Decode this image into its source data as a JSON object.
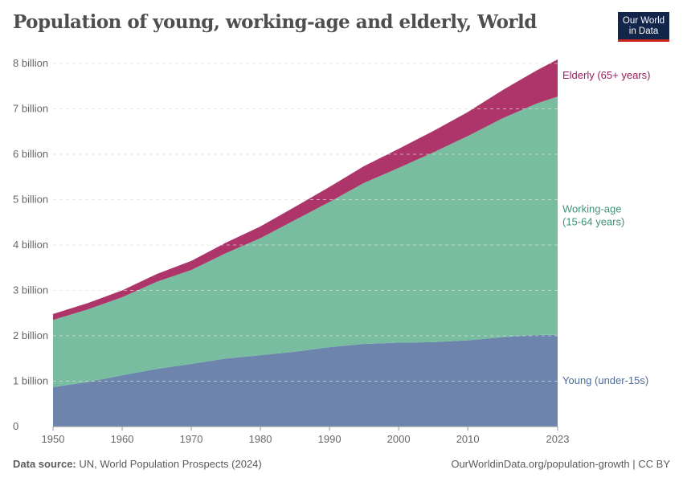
{
  "title": "Population of young, working-age and elderly, World",
  "logo": {
    "line1": "Our World",
    "line2": "in Data"
  },
  "footer": {
    "source_label": "Data source:",
    "source": "UN, World Population Prospects (2024)",
    "link": "OurWorldinData.org/population-growth | CC BY"
  },
  "chart_data": {
    "type": "area",
    "stacked": true,
    "x": [
      1950,
      1955,
      1960,
      1965,
      1970,
      1975,
      1980,
      1985,
      1990,
      1995,
      2000,
      2005,
      2010,
      2015,
      2020,
      2023
    ],
    "series": [
      {
        "name": "Young (under-15s)",
        "color": "#6d85ad",
        "label_color": "#4c6a9c",
        "values": [
          0.87,
          0.98,
          1.13,
          1.27,
          1.38,
          1.5,
          1.57,
          1.65,
          1.75,
          1.82,
          1.85,
          1.86,
          1.9,
          1.97,
          2.02,
          2.02
        ]
      },
      {
        "name": "Working-age (15-64 years)",
        "label_lines": [
          "Working-age",
          "(15-64 years)"
        ],
        "color": "#79bda1",
        "label_color": "#3e9473",
        "values": [
          1.48,
          1.6,
          1.72,
          1.92,
          2.07,
          2.32,
          2.58,
          2.9,
          3.2,
          3.55,
          3.85,
          4.18,
          4.5,
          4.82,
          5.1,
          5.25
        ]
      },
      {
        "name": "Elderly (65+ years)",
        "color": "#ad3569",
        "label_color": "#9a1c5d",
        "values": [
          0.13,
          0.14,
          0.15,
          0.17,
          0.2,
          0.23,
          0.26,
          0.29,
          0.33,
          0.37,
          0.42,
          0.47,
          0.53,
          0.62,
          0.73,
          0.82
        ]
      }
    ],
    "unit": "billion",
    "ylim": [
      0,
      8
    ],
    "yticks": [
      "0",
      "1 billion",
      "2 billion",
      "3 billion",
      "4 billion",
      "5 billion",
      "6 billion",
      "7 billion",
      "8 billion"
    ],
    "xticks": [
      "1950",
      "1960",
      "1970",
      "1980",
      "1990",
      "2000",
      "2010",
      "2023"
    ],
    "xtick_values": [
      1950,
      1960,
      1970,
      1980,
      1990,
      2000,
      2010,
      2023
    ],
    "grid": "horizontal dashed",
    "legend": "inline-right"
  }
}
